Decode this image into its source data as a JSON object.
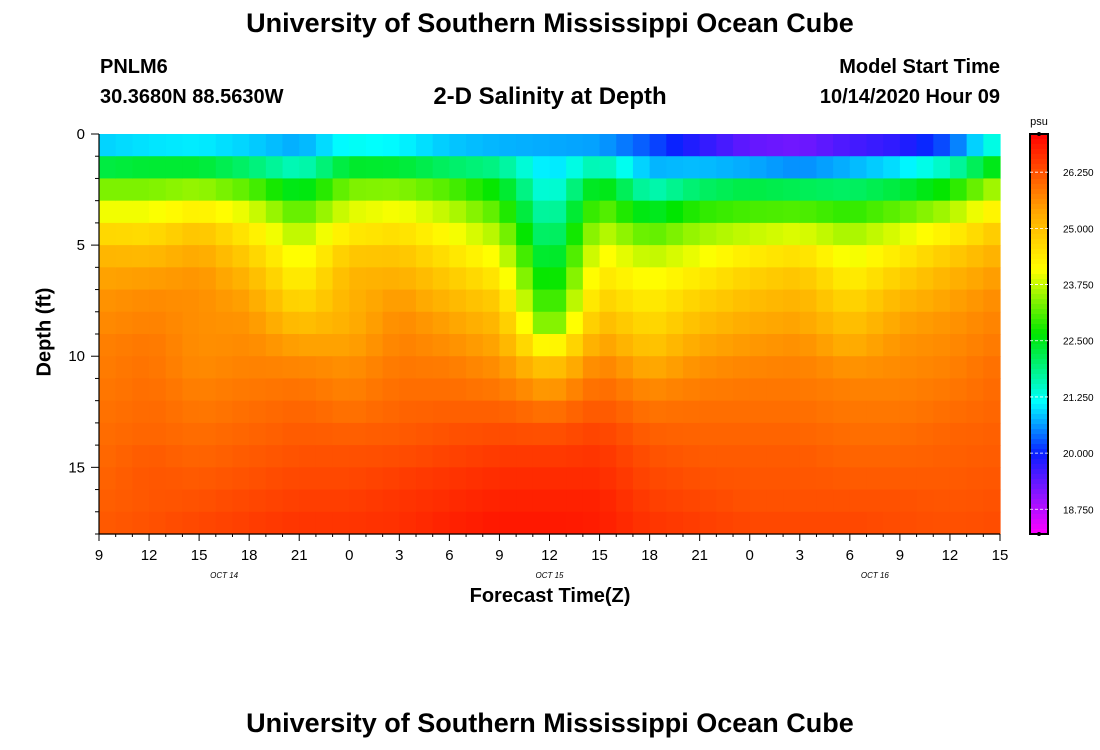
{
  "header": {
    "title": "University of Southern Mississippi Ocean Cube",
    "station": "PNLM6",
    "coords": "30.3680N 88.5630W",
    "subtitle": "2-D Salinity at Depth",
    "model_start_label": "Model Start Time",
    "model_start_value": "10/14/2020 Hour 09"
  },
  "footer": {
    "title": "University of Southern Mississippi Ocean Cube"
  },
  "chart_data": {
    "type": "heatmap",
    "title": "2-D Salinity at Depth",
    "xlabel": "Forecast Time(Z)",
    "ylabel": "Depth (ft)",
    "xlim": [
      0,
      54
    ],
    "ylim": [
      0,
      18
    ],
    "x_ticks": [
      {
        "v": 0,
        "label": "9"
      },
      {
        "v": 3,
        "label": "12"
      },
      {
        "v": 6,
        "label": "15"
      },
      {
        "v": 9,
        "label": "18"
      },
      {
        "v": 12,
        "label": "21"
      },
      {
        "v": 15,
        "label": "0"
      },
      {
        "v": 18,
        "label": "3"
      },
      {
        "v": 21,
        "label": "6"
      },
      {
        "v": 24,
        "label": "9"
      },
      {
        "v": 27,
        "label": "12"
      },
      {
        "v": 30,
        "label": "15"
      },
      {
        "v": 33,
        "label": "18"
      },
      {
        "v": 36,
        "label": "21"
      },
      {
        "v": 39,
        "label": "0"
      },
      {
        "v": 42,
        "label": "3"
      },
      {
        "v": 45,
        "label": "6"
      },
      {
        "v": 48,
        "label": "9"
      },
      {
        "v": 51,
        "label": "12"
      },
      {
        "v": 54,
        "label": "15"
      }
    ],
    "date_labels": [
      {
        "v": 7.5,
        "label": "OCT 14"
      },
      {
        "v": 27,
        "label": "OCT 15"
      },
      {
        "v": 46.5,
        "label": "OCT 16"
      }
    ],
    "y_ticks": [
      {
        "v": 0,
        "label": "0"
      },
      {
        "v": 5,
        "label": "5"
      },
      {
        "v": 10,
        "label": "10"
      },
      {
        "v": 15,
        "label": "15"
      }
    ],
    "colorbar": {
      "unit": "psu",
      "range": [
        18.2,
        27.1
      ],
      "ticks": [
        "26.250",
        "25.000",
        "23.750",
        "22.500",
        "21.250",
        "20.000",
        "18.750"
      ]
    },
    "x_hours": [
      0,
      3,
      6,
      9,
      12,
      15,
      18,
      21,
      24,
      27,
      30,
      33,
      36,
      39,
      42,
      45,
      48,
      51,
      54
    ],
    "depth_levels": [
      0,
      1,
      2,
      3,
      4,
      5,
      6,
      7,
      8,
      9,
      10,
      11,
      12,
      13,
      14,
      15,
      16,
      17,
      18
    ],
    "salinity_profiles": [
      [
        20.3,
        21.5,
        23.0,
        23.7,
        24.3,
        25.0,
        25.3,
        25.5,
        25.6,
        25.7,
        25.8,
        25.8,
        25.9,
        25.9,
        26.0,
        26.0,
        26.1,
        26.1,
        26.2
      ],
      [
        20.3,
        21.7,
        23.0,
        23.7,
        24.3,
        24.9,
        25.3,
        25.6,
        25.7,
        25.8,
        25.9,
        25.9,
        26.0,
        26.0,
        26.1,
        26.2,
        26.2,
        26.2,
        26.3
      ],
      [
        20.5,
        21.6,
        23.1,
        23.9,
        24.7,
        25.2,
        25.5,
        25.6,
        25.6,
        25.6,
        25.6,
        25.7,
        25.8,
        25.9,
        26.0,
        26.1,
        26.2,
        26.3,
        26.4
      ],
      [
        20.5,
        21.3,
        22.7,
        23.6,
        24.2,
        24.6,
        25.0,
        25.3,
        25.5,
        25.6,
        25.7,
        25.8,
        25.9,
        26.0,
        26.1,
        26.2,
        26.3,
        26.4,
        26.5
      ],
      [
        20.4,
        21.0,
        22.0,
        22.8,
        23.4,
        23.8,
        24.1,
        24.4,
        24.8,
        25.2,
        25.6,
        25.8,
        26.0,
        26.1,
        26.2,
        26.3,
        26.4,
        26.5,
        26.6
      ],
      [
        20.6,
        21.8,
        23.0,
        23.7,
        24.1,
        24.7,
        25.1,
        25.2,
        25.2,
        25.3,
        25.5,
        25.7,
        25.8,
        26.0,
        26.2,
        26.3,
        26.4,
        26.5,
        26.6
      ],
      [
        20.5,
        21.7,
        23.0,
        23.8,
        24.3,
        24.8,
        25.1,
        25.4,
        25.6,
        25.7,
        25.8,
        25.9,
        26.0,
        26.1,
        26.2,
        26.4,
        26.5,
        26.6,
        26.6
      ],
      [
        20.3,
        21.4,
        22.7,
        23.5,
        23.9,
        24.3,
        24.7,
        25.0,
        25.3,
        25.5,
        25.7,
        25.9,
        26.0,
        26.2,
        26.3,
        26.5,
        26.6,
        26.7,
        26.8
      ],
      [
        20.2,
        21.3,
        22.4,
        22.8,
        23.4,
        23.8,
        24.2,
        24.6,
        25.0,
        25.2,
        25.5,
        25.7,
        26.0,
        26.2,
        26.4,
        26.6,
        26.7,
        26.8,
        26.9
      ],
      [
        20.6,
        20.8,
        21.0,
        21.3,
        21.6,
        21.9,
        22.2,
        22.5,
        22.8,
        23.3,
        24.6,
        25.2,
        25.7,
        26.1,
        26.4,
        26.6,
        26.7,
        26.8,
        26.9
      ],
      [
        20.3,
        21.0,
        22.4,
        23.0,
        23.5,
        24.0,
        24.3,
        24.6,
        24.9,
        25.3,
        25.6,
        25.9,
        26.1,
        26.3,
        26.5,
        26.6,
        26.7,
        26.8,
        26.8
      ],
      [
        20.1,
        20.4,
        21.1,
        22.0,
        22.8,
        23.5,
        23.9,
        24.2,
        24.5,
        24.7,
        25.1,
        25.5,
        25.8,
        26.0,
        26.2,
        26.3,
        26.4,
        26.5,
        26.6
      ],
      [
        19.5,
        20.0,
        21.6,
        22.5,
        23.3,
        23.8,
        24.2,
        24.6,
        24.9,
        25.2,
        25.5,
        25.7,
        25.9,
        26.0,
        26.1,
        26.2,
        26.3,
        26.4,
        26.5
      ],
      [
        19.1,
        19.6,
        21.8,
        22.7,
        23.4,
        24.1,
        24.6,
        24.9,
        25.2,
        25.4,
        25.6,
        25.8,
        25.9,
        26.0,
        26.1,
        26.2,
        26.2,
        26.3,
        26.4
      ],
      [
        19.0,
        19.5,
        21.6,
        22.7,
        23.5,
        24.3,
        24.8,
        25.1,
        25.3,
        25.5,
        25.7,
        25.8,
        25.9,
        26.0,
        26.1,
        26.2,
        26.2,
        26.3,
        26.4
      ],
      [
        19.2,
        19.9,
        21.6,
        22.5,
        23.3,
        23.8,
        24.1,
        24.5,
        24.8,
        25.1,
        25.4,
        25.7,
        25.8,
        25.9,
        26.0,
        26.1,
        26.2,
        26.3,
        26.4
      ],
      [
        19.3,
        20.2,
        21.8,
        22.8,
        23.6,
        24.2,
        24.6,
        25.0,
        25.3,
        25.5,
        25.6,
        25.7,
        25.8,
        25.9,
        26.0,
        26.1,
        26.2,
        26.3,
        26.3
      ],
      [
        19.8,
        20.8,
        22.3,
        23.2,
        24.0,
        24.6,
        25.1,
        25.3,
        25.5,
        25.6,
        25.7,
        25.8,
        25.9,
        26.0,
        26.1,
        26.1,
        26.2,
        26.2,
        26.3
      ],
      [
        21.0,
        22.0,
        23.4,
        24.0,
        24.7,
        25.1,
        25.4,
        25.6,
        25.7,
        25.8,
        25.9,
        26.0,
        26.0,
        26.1,
        26.1,
        26.2,
        26.2,
        26.3,
        26.3
      ]
    ]
  }
}
